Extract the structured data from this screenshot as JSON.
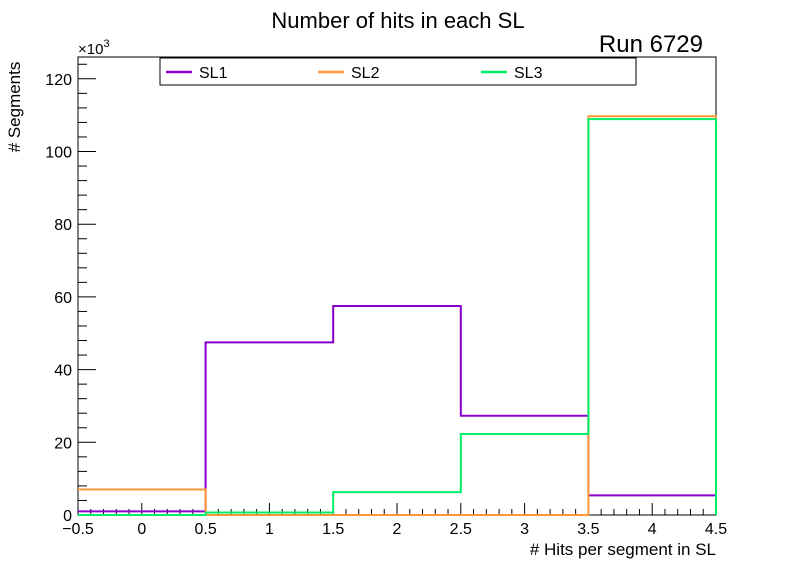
{
  "chart_data": {
    "type": "histogram-step",
    "title": "Number of hits in each SL",
    "run_label": "Run 6729",
    "xlabel": "# Hits per segment in SL",
    "ylabel": "# Segments",
    "y_multiplier_label": "×10",
    "y_multiplier_exponent": "3",
    "xlim": [
      -0.5,
      4.5
    ],
    "ylim": [
      0,
      126
    ],
    "bin_edges": [
      -0.5,
      0.5,
      1.5,
      2.5,
      3.5,
      4.5
    ],
    "x_ticks": [
      -0.5,
      0,
      0.5,
      1,
      1.5,
      2,
      2.5,
      3,
      3.5,
      4,
      4.5
    ],
    "x_tick_labels": [
      "−0.5",
      "0",
      "0.5",
      "1",
      "1.5",
      "2",
      "2.5",
      "3",
      "3.5",
      "4",
      "4.5"
    ],
    "y_ticks": [
      0,
      20,
      40,
      60,
      80,
      100,
      120
    ],
    "y_tick_labels": [
      "0",
      "20",
      "40",
      "60",
      "80",
      "100",
      "120"
    ],
    "legend_position": "top",
    "series": [
      {
        "name": "SL1",
        "color": "#8800cc",
        "values": [
          1.0,
          47.5,
          57.5,
          27.3,
          5.4
        ]
      },
      {
        "name": "SL2",
        "color": "#ff9933",
        "values": [
          7.0,
          0.0,
          0.0,
          0.0,
          109.7
        ]
      },
      {
        "name": "SL3",
        "color": "#00ee66",
        "values": [
          0.0,
          0.7,
          6.3,
          22.3,
          108.9
        ]
      }
    ]
  }
}
